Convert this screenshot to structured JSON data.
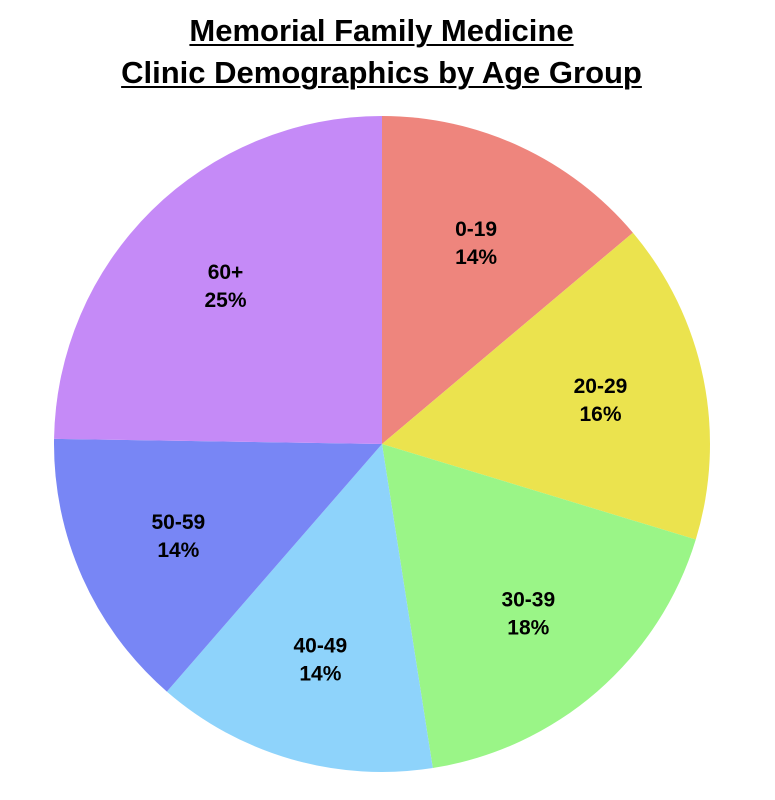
{
  "chart_data": {
    "type": "pie",
    "title_lines": [
      "Memorial Family Medicine",
      "Clinic Demographics by Age Group"
    ],
    "slices": [
      {
        "label": "0-19",
        "value": 14,
        "display": "14%",
        "color": "#EE857D"
      },
      {
        "label": "20-29",
        "value": 16,
        "display": "16%",
        "color": "#EBE34E"
      },
      {
        "label": "30-39",
        "value": 18,
        "display": "18%",
        "color": "#9AF587"
      },
      {
        "label": "40-49",
        "value": 14,
        "display": "14%",
        "color": "#8ED3FB"
      },
      {
        "label": "50-59",
        "value": 14,
        "display": "14%",
        "color": "#7886F5"
      },
      {
        "label": "60+",
        "value": 25,
        "display": "25%",
        "color": "#C58AF7"
      }
    ],
    "start_angle": "12 o'clock",
    "direction": "clockwise",
    "legend": "none"
  }
}
